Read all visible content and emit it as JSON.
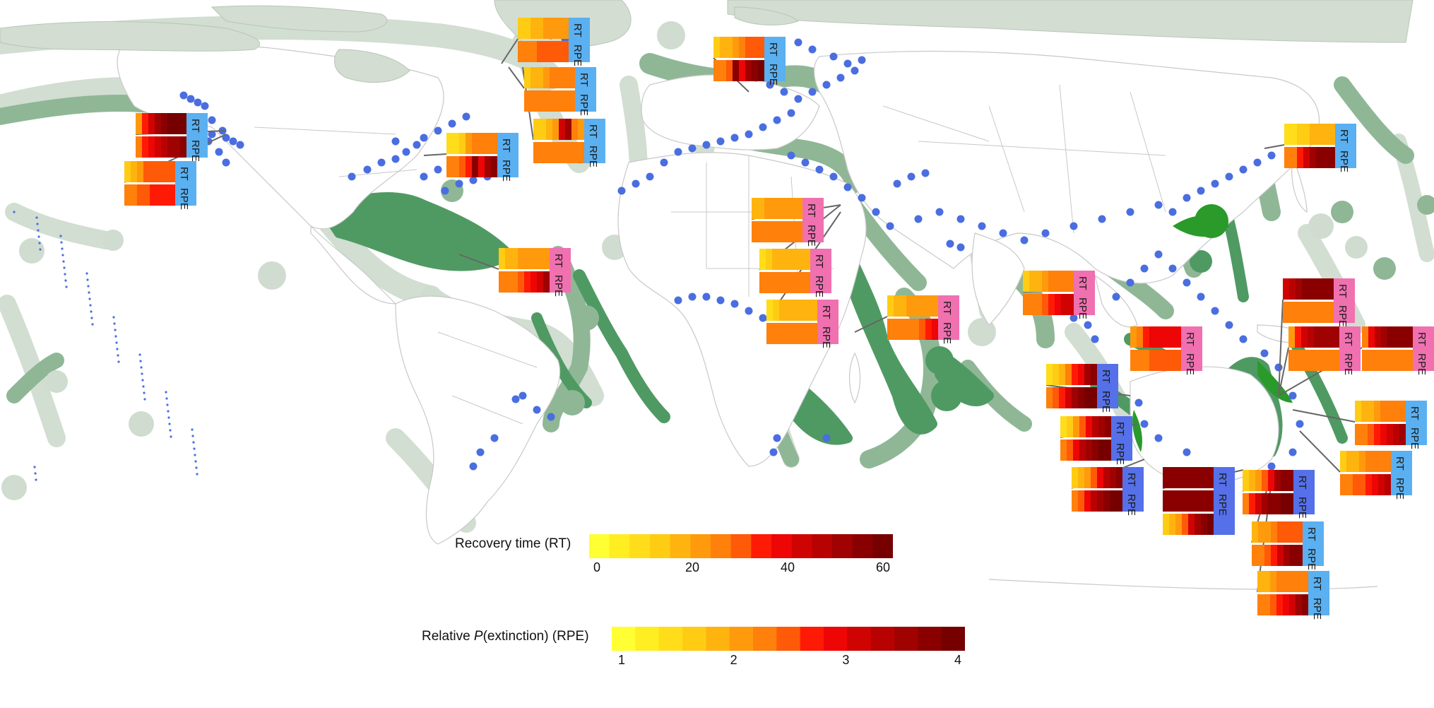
{
  "legend": {
    "rt": {
      "title": "Recovery time (RT)",
      "ticks": [
        "0",
        "20",
        "40",
        "60"
      ],
      "colors": [
        "#ffff33",
        "#ffee22",
        "#ffdd1a",
        "#ffcc14",
        "#ffb30f",
        "#ff9a0d",
        "#ff800a",
        "#ff5a08",
        "#ff1a05",
        "#ee0505",
        "#d00303",
        "#b80202",
        "#a00101",
        "#8a0000",
        "#760000"
      ]
    },
    "rpe": {
      "title_prefix": "Relative ",
      "title_italic": "P",
      "title_suffix": "(extinction) (RPE)",
      "ticks": [
        "1",
        "2",
        "3",
        "4"
      ],
      "colors": [
        "#ffff33",
        "#ffee22",
        "#ffdd1a",
        "#ffcc14",
        "#ffb30f",
        "#ff9a0d",
        "#ff800a",
        "#ff5a08",
        "#ff1a05",
        "#ee0505",
        "#d00303",
        "#b80202",
        "#a00101",
        "#8a0000",
        "#760000"
      ]
    }
  },
  "panel_labels": {
    "rt": "RT",
    "rpe": "RPE"
  },
  "colors": {
    "land": "#ffffff",
    "land_stroke": "#c8c8c8",
    "arctic_land": "#d3ddd2",
    "zone_light": "#cfdccf",
    "zone_mid": "#8fb796",
    "zone_dark": "#4f9a63",
    "zone_bright": "#2a9a2a",
    "site_dot": "#4a6ee0",
    "tag_blue": "#5ab0f0",
    "tag_pink": "#f070b0",
    "tag_indigo": "#5570e8",
    "leader": "#666666"
  },
  "panels": [
    {
      "tag": "blue",
      "rt": [
        5,
        8,
        10,
        12,
        13,
        14,
        14,
        14
      ],
      "rpe": [
        6,
        8,
        9,
        10,
        11,
        12,
        12,
        13
      ]
    },
    {
      "tag": "blue",
      "rt": [
        3,
        4,
        5,
        7,
        7,
        7,
        7,
        7
      ],
      "rpe": [
        6,
        6,
        7,
        7,
        8,
        8,
        8,
        8
      ]
    },
    {
      "tag": "blue",
      "rt": [
        3,
        3,
        4,
        4,
        5,
        5,
        5,
        5
      ],
      "rpe": [
        6,
        6,
        6,
        7,
        7,
        7,
        7,
        7
      ]
    },
    {
      "tag": "blue",
      "rt": [
        3,
        4,
        4,
        5,
        6,
        6,
        6,
        6
      ],
      "rpe": [
        6,
        6,
        6,
        6,
        6,
        6,
        6,
        6
      ]
    },
    {
      "tag": "blue",
      "rt": [
        3,
        3,
        4,
        5,
        10,
        12,
        6,
        5
      ],
      "rpe": [
        6,
        6,
        6,
        6,
        6,
        6,
        6,
        6
      ]
    },
    {
      "tag": "blue",
      "rt": [
        2,
        2,
        3,
        5,
        6,
        6,
        6,
        6
      ],
      "rpe": [
        6,
        6,
        7,
        8,
        13,
        9,
        12,
        13
      ]
    },
    {
      "tag": "blue",
      "rt": [
        3,
        4,
        4,
        5,
        6,
        7,
        7,
        7
      ],
      "rpe": [
        6,
        6,
        7,
        13,
        9,
        12,
        13,
        14
      ]
    },
    {
      "tag": "blue",
      "rt": [
        2,
        2,
        3,
        3,
        4,
        4,
        4,
        4
      ],
      "rpe": [
        6,
        6,
        8,
        10,
        12,
        13,
        13,
        13
      ]
    },
    {
      "tag": "pink",
      "rt": [
        4,
        4,
        5,
        5,
        5,
        5,
        5,
        5
      ],
      "rpe": [
        6,
        6,
        6,
        6,
        6,
        6,
        6,
        6
      ]
    },
    {
      "tag": "pink",
      "rt": [
        2,
        3,
        4,
        4,
        4,
        4,
        4,
        4
      ],
      "rpe": [
        6,
        6,
        6,
        6,
        6,
        6,
        6,
        6
      ]
    },
    {
      "tag": "pink",
      "rt": [
        2,
        3,
        4,
        4,
        4,
        4,
        4,
        4
      ],
      "rpe": [
        6,
        6,
        6,
        6,
        6,
        6,
        6,
        6
      ]
    },
    {
      "tag": "pink",
      "rt": [
        3,
        4,
        4,
        5,
        5,
        5,
        5,
        5
      ],
      "rpe": [
        6,
        6,
        6,
        7,
        8,
        9,
        10,
        12
      ]
    },
    {
      "tag": "pink",
      "rt": [
        3,
        4,
        4,
        5,
        5,
        5,
        5,
        5
      ],
      "rpe": [
        6,
        6,
        6,
        6,
        6,
        7,
        8,
        9
      ]
    },
    {
      "tag": "pink",
      "rt": [
        3,
        4,
        4,
        5,
        6,
        6,
        6,
        6
      ],
      "rpe": [
        6,
        6,
        6,
        7,
        8,
        9,
        10,
        10
      ]
    },
    {
      "tag": "pink",
      "rt": [
        5,
        6,
        8,
        9,
        9,
        9,
        9,
        9
      ],
      "rpe": [
        6,
        6,
        6,
        7,
        7,
        7,
        7,
        7
      ]
    },
    {
      "tag": "pink",
      "rt": [
        10,
        11,
        12,
        13,
        13,
        13,
        13,
        13
      ],
      "rpe": [
        6,
        6,
        6,
        6,
        6,
        6,
        6,
        6
      ]
    },
    {
      "tag": "pink",
      "rt": [
        5,
        8,
        10,
        11,
        12,
        12,
        12,
        12
      ],
      "rpe": [
        6,
        6,
        6,
        6,
        6,
        6,
        6,
        6
      ]
    },
    {
      "tag": "pink",
      "rt": [
        6,
        9,
        11,
        12,
        13,
        13,
        13,
        13
      ],
      "rpe": [
        6,
        6,
        6,
        6,
        6,
        6,
        6,
        6
      ]
    },
    {
      "tag": "indigo",
      "rt": [
        2,
        3,
        4,
        6,
        8,
        9,
        12,
        13
      ],
      "rpe": [
        6,
        7,
        8,
        10,
        12,
        13,
        14,
        14
      ]
    },
    {
      "tag": "indigo",
      "rt": [
        2,
        3,
        5,
        7,
        9,
        11,
        12,
        13
      ],
      "rpe": [
        6,
        7,
        9,
        11,
        12,
        13,
        14,
        14
      ]
    },
    {
      "tag": "indigo",
      "rt": [
        3,
        4,
        5,
        7,
        9,
        11,
        12,
        13
      ],
      "rpe": [
        6,
        7,
        9,
        11,
        12,
        13,
        14,
        14
      ]
    },
    {
      "tag": "indigo",
      "rt": [
        13,
        13,
        13,
        13,
        13,
        13,
        13,
        13
      ],
      "rpe": [
        13,
        13,
        13,
        13,
        13,
        13,
        13,
        13
      ],
      "extra": [
        3,
        4,
        5,
        7,
        10,
        12,
        13,
        14
      ]
    },
    {
      "tag": "indigo",
      "rt": [
        3,
        4,
        5,
        7,
        9,
        12,
        13,
        13
      ],
      "rpe": [
        6,
        8,
        10,
        12,
        13,
        13,
        14,
        14
      ]
    },
    {
      "tag": "blue",
      "rt": [
        3,
        4,
        4,
        5,
        6,
        6,
        6,
        6
      ],
      "rpe": [
        6,
        6,
        7,
        8,
        9,
        10,
        11,
        12
      ]
    },
    {
      "tag": "blue",
      "rt": [
        3,
        4,
        4,
        5,
        6,
        6,
        6,
        6
      ],
      "rpe": [
        6,
        6,
        7,
        7,
        8,
        9,
        10,
        11
      ]
    },
    {
      "tag": "blue",
      "rt": [
        4,
        5,
        5,
        6,
        7,
        7,
        7,
        7
      ],
      "rpe": [
        6,
        6,
        7,
        8,
        10,
        12,
        13,
        13
      ]
    },
    {
      "tag": "blue",
      "rt": [
        4,
        4,
        5,
        6,
        6,
        6,
        6,
        6
      ],
      "rpe": [
        6,
        6,
        7,
        8,
        9,
        10,
        12,
        13
      ]
    }
  ]
}
